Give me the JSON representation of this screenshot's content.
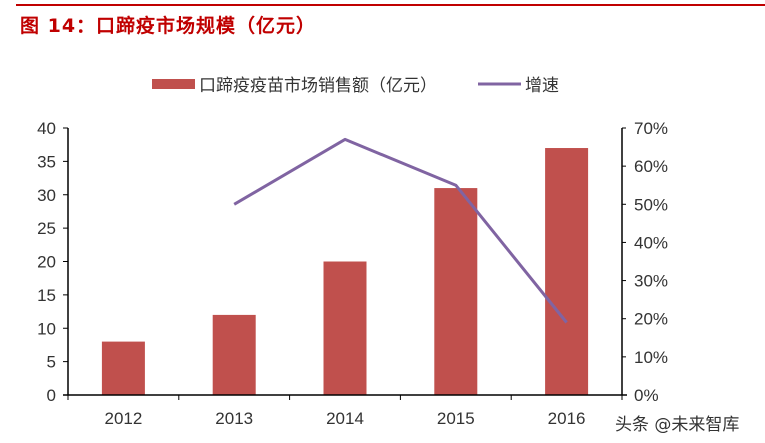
{
  "header": {
    "title": "图 14：口蹄疫市场规模（亿元）"
  },
  "legend": {
    "bar_label": "口蹄疫疫苗市场销售额（亿元）",
    "line_label": "增速"
  },
  "colors": {
    "title": "#c00000",
    "bar": "#c0504d",
    "line": "#8064a2",
    "axis": "#000000",
    "text": "#333333"
  },
  "watermark": "头条 @未来智库",
  "chart_data": {
    "type": "bar",
    "title": "图 14：口蹄疫市场规模（亿元）",
    "categories": [
      "2012",
      "2013",
      "2014",
      "2015",
      "2016"
    ],
    "series": [
      {
        "name": "口蹄疫疫苗市场销售额（亿元）",
        "type": "bar",
        "axis": "left",
        "values": [
          8,
          12,
          20,
          31,
          37
        ]
      },
      {
        "name": "增速",
        "type": "line",
        "axis": "right",
        "values": [
          null,
          0.5,
          0.67,
          0.55,
          0.19
        ]
      }
    ],
    "xlabel": "",
    "ylabel": "",
    "ylim": [
      0,
      40
    ],
    "y_ticks": [
      "0",
      "5",
      "10",
      "15",
      "20",
      "25",
      "30",
      "35",
      "40"
    ],
    "y2lim": [
      0,
      0.7
    ],
    "y2_ticks": [
      "0%",
      "10%",
      "20%",
      "30%",
      "40%",
      "50%",
      "60%",
      "70%"
    ],
    "grid": false,
    "legend_position": "top"
  }
}
